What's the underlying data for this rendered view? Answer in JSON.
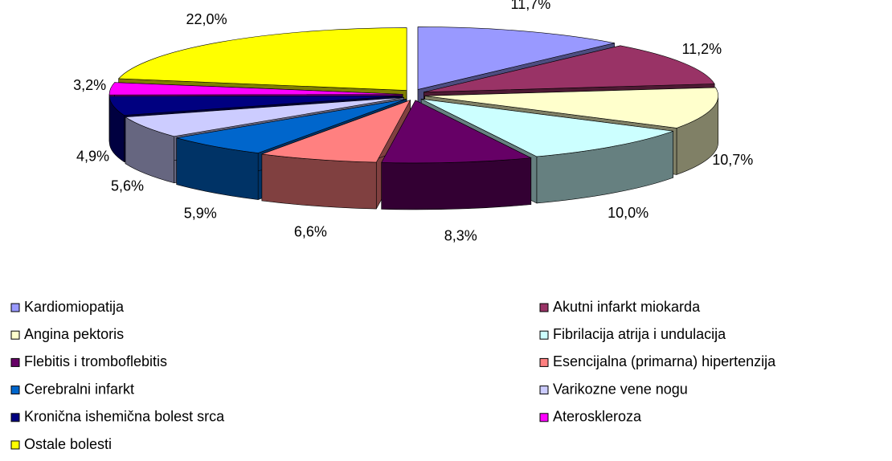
{
  "chart_data": {
    "type": "pie3d",
    "categories": [
      "Kardiomiopatija",
      "Akutni infarkt miokarda",
      "Angina pektoris",
      "Fibrilacija atrija i undulacija",
      "Flebitis i tromboflebitis",
      "Esencijalna (primarna) hipertenzija",
      "Cerebralni infarkt",
      "Varikozne vene nogu",
      "Kronična ishemična bolest srca",
      "Ateroskleroza",
      "Ostale bolesti"
    ],
    "values": [
      11.7,
      11.2,
      10.7,
      10.0,
      8.3,
      6.6,
      5.9,
      5.6,
      4.9,
      3.2,
      22.0
    ],
    "value_labels": [
      "11,7%",
      "11,2%",
      "10,7%",
      "10,0%",
      "8,3%",
      "6,6%",
      "5,9%",
      "5,6%",
      "4,9%",
      "3,2%",
      "22,0%"
    ],
    "colors": [
      "#9999ff",
      "#993366",
      "#ffffcc",
      "#ccffff",
      "#660066",
      "#ff8080",
      "#0066cc",
      "#ccccff",
      "#000080",
      "#ff00ff",
      "#ffff00"
    ],
    "legend": "bottom"
  }
}
